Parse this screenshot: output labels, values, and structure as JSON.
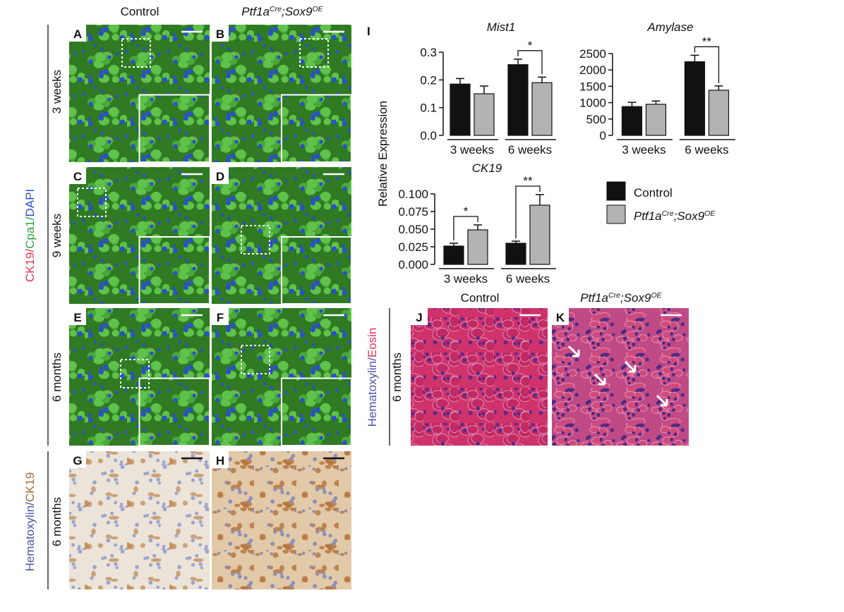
{
  "figure": {
    "column_labels": [
      "Control"
    ],
    "genotype": [
      "Ptf1a",
      "Cre",
      ";Sox9",
      "OE"
    ],
    "row_labels": [
      "3 weeks",
      "9 weeks",
      "6 months",
      "6 months",
      "6 months"
    ],
    "stain_fluo": [
      "CK19/",
      "Cpa1/",
      "DAPI"
    ],
    "stain_ihc": [
      "Hematoxylin/",
      "CK19"
    ],
    "stain_he": [
      "Hematoxylin/",
      "Eosin"
    ],
    "panel_letters": [
      "A",
      "B",
      "C",
      "D",
      "E",
      "F",
      "G",
      "H",
      "J",
      "K"
    ],
    "chart_letter": "I",
    "y_axis_label": "Relative Expression",
    "legend": [
      "Control"
    ]
  },
  "chart_data": [
    {
      "type": "bar",
      "title": "Mist1",
      "categories": [
        "3 weeks",
        "6 weeks"
      ],
      "series": [
        {
          "color": "#111111",
          "values": [
            0.185,
            0.255
          ],
          "errors": [
            0.02,
            0.02
          ]
        },
        {
          "color": "#b3b3b3",
          "values": [
            0.15,
            0.19
          ],
          "errors": [
            0.028,
            0.02
          ]
        }
      ],
      "ylim": [
        0,
        0.3
      ],
      "yticks": [
        {
          "value": 0,
          "label": "0.0"
        },
        0.1,
        0.2,
        0.3
      ],
      "significance": [
        null,
        "*"
      ]
    },
    {
      "type": "bar",
      "title": "Amylase",
      "categories": [
        "3 weeks",
        "6 weeks"
      ],
      "series": [
        {
          "color": "#111111",
          "values": [
            880,
            2250
          ],
          "errors": [
            130,
            200
          ]
        },
        {
          "color": "#b3b3b3",
          "values": [
            950,
            1380
          ],
          "errors": [
            100,
            130
          ]
        }
      ],
      "ylim": [
        0,
        2500
      ],
      "yticks": [
        0,
        500,
        1000,
        1500,
        2000,
        2500
      ],
      "significance": [
        null,
        "**"
      ]
    },
    {
      "type": "bar",
      "title": "CK19",
      "categories": [
        "3 weeks",
        "6 weeks"
      ],
      "series": [
        {
          "color": "#111111",
          "values": [
            0.026,
            0.03
          ],
          "errors": [
            0.004,
            0.003
          ]
        },
        {
          "color": "#b3b3b3",
          "values": [
            0.049,
            0.084
          ],
          "errors": [
            0.007,
            0.015
          ]
        }
      ],
      "ylim": [
        0,
        0.1
      ],
      "yticks": [
        {
          "value": 0,
          "label": "0.000"
        },
        {
          "value": 0.025,
          "label": "0.025"
        },
        {
          "value": 0.05,
          "label": "0.050"
        },
        {
          "value": 0.075,
          "label": "0.075"
        },
        {
          "value": 0.1,
          "label": "0.100"
        }
      ],
      "significance": [
        "*",
        "**"
      ]
    }
  ]
}
